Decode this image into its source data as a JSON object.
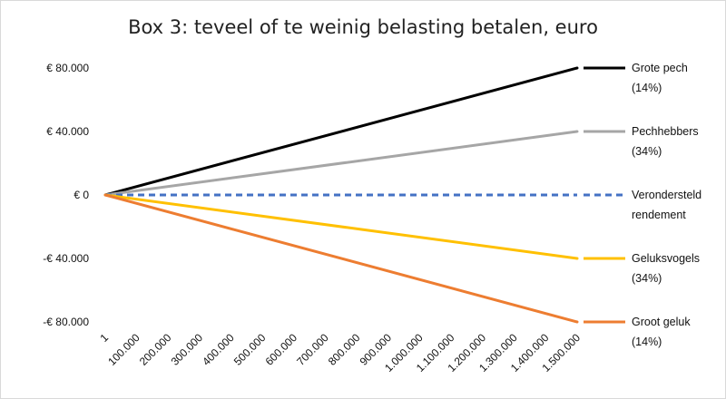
{
  "chart_data": {
    "type": "line",
    "title": "Box 3: teveel of te weinig belasting betalen, euro",
    "xlabel": "",
    "ylabel": "",
    "x_tick_labels": [
      "1",
      "100.000",
      "200.000",
      "300.000",
      "400.000",
      "500.000",
      "600.000",
      "700.000",
      "800.000",
      "900.000",
      "1.000.000",
      "1.100.000",
      "1.200.000",
      "1.300.000",
      "1.400.000",
      "1.500.000"
    ],
    "y_tick_labels": [
      "€ 80.000",
      "€ 40.000",
      "€ 0",
      "-€ 40.000",
      "-€ 80.000"
    ],
    "y_ticks": [
      80000,
      40000,
      0,
      -40000,
      -80000
    ],
    "ylim": [
      -80000,
      80000
    ],
    "xlim": [
      0,
      1500000
    ],
    "grid": false,
    "legend_placement": "right, at end of each line",
    "series": [
      {
        "name": "Grote pech",
        "share": "(14%)",
        "color": "#000000",
        "dash": "solid",
        "points": [
          [
            0,
            0
          ],
          [
            1500000,
            80000
          ]
        ]
      },
      {
        "name": "Pechhebbers",
        "share": "(34%)",
        "color": "#a6a6a6",
        "dash": "solid",
        "points": [
          [
            0,
            0
          ],
          [
            1500000,
            40000
          ]
        ]
      },
      {
        "name": "Verondersteld rendement",
        "share": "",
        "color": "#4472c4",
        "dash": "dashed",
        "points": [
          [
            0,
            0
          ],
          [
            1500000,
            0
          ]
        ]
      },
      {
        "name": "Geluksvogels",
        "share": "(34%)",
        "color": "#ffc000",
        "dash": "solid",
        "points": [
          [
            0,
            0
          ],
          [
            1500000,
            -40000
          ]
        ]
      },
      {
        "name": "Groot geluk",
        "share": "(14%)",
        "color": "#ed7d31",
        "dash": "solid",
        "points": [
          [
            0,
            0
          ],
          [
            1500000,
            -80000
          ]
        ]
      }
    ]
  }
}
